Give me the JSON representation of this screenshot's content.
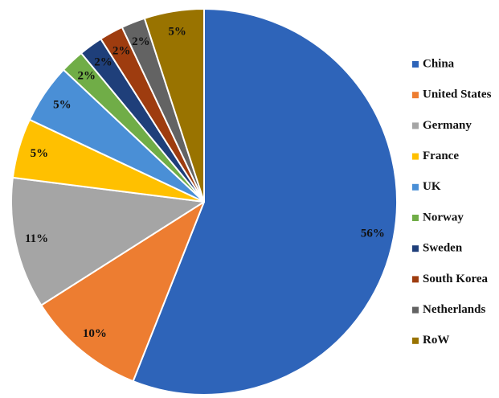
{
  "chart_data": {
    "type": "pie",
    "categories": [
      "China",
      "United States",
      "Germany",
      "France",
      "UK",
      "Norway",
      "Sweden",
      "South Korea",
      "Netherlands",
      "RoW"
    ],
    "values": [
      56,
      10,
      11,
      5,
      5,
      2,
      2,
      2,
      2,
      5
    ],
    "value_labels": [
      "56%",
      "10%",
      "11%",
      "5%",
      "5%",
      "2%",
      "2%",
      "2%",
      "2%",
      "5%"
    ],
    "colors": [
      "#2e64b9",
      "#ed7d31",
      "#a5a5a5",
      "#ffc000",
      "#4a8fd6",
      "#70ad47",
      "#1f3f7a",
      "#9e3c0f",
      "#636363",
      "#997300"
    ],
    "legend": "right"
  }
}
